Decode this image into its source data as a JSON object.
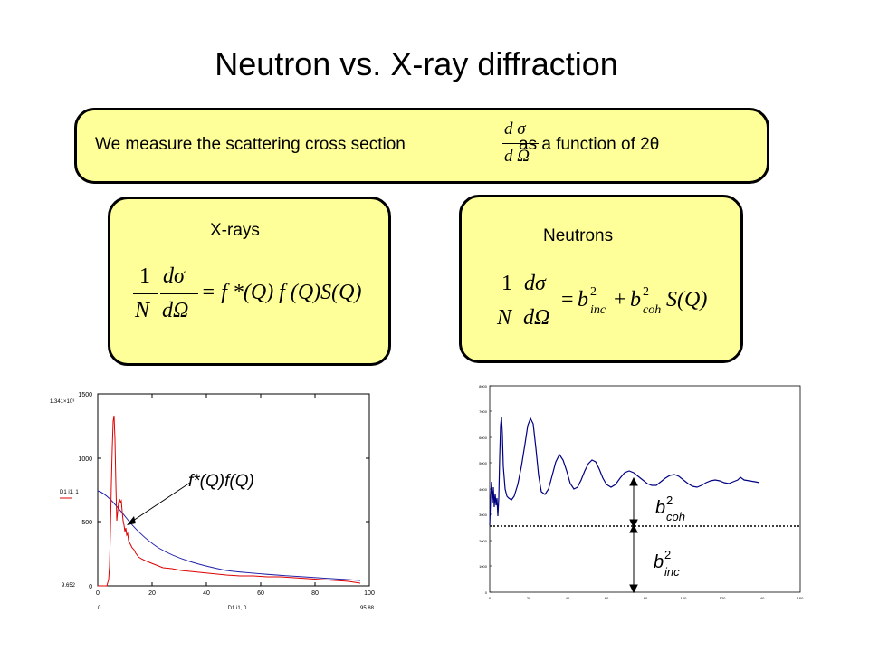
{
  "slide": {
    "title": "Neutron vs. X-ray diffraction",
    "top_box": {
      "text_before": "We measure the scattering cross section",
      "frac_num": "d σ",
      "frac_den": "d Ω",
      "text_after": "as a function of 2θ"
    },
    "xray_box": {
      "label": "X-rays",
      "eq_lhs1_num": "1",
      "eq_lhs1_den": "N",
      "eq_lhs2_num": "dσ",
      "eq_lhs2_den": "dΩ",
      "eq_rhs": "= f *(Q) f (Q)S(Q)"
    },
    "neutron_box": {
      "label": "Neutrons",
      "eq_lhs1_num": "1",
      "eq_lhs1_den": "N",
      "eq_lhs2_num": "dσ",
      "eq_lhs2_den": "dΩ",
      "eq_rhs_eq": "=",
      "b1": "b",
      "b1_sup": "2",
      "b1_sub": "inc",
      "plus": "+",
      "b2": "b",
      "b2_sup": "2",
      "b2_sub": "coh",
      "sq": "S(Q)"
    },
    "left_plot": {
      "annotation": "f*(Q)f(Q)",
      "legend_label": "D1 i1, 1",
      "xlabel": "D1 i1, 0",
      "yticks": [
        "0",
        "500",
        "1000",
        "1500"
      ],
      "xticks": [
        "0",
        "20",
        "40",
        "60",
        "80",
        "100"
      ],
      "ymax_label": "1.341×10³",
      "ymin_label": "9.652",
      "xmin_label": "0",
      "xmax_label": "95.88",
      "colors": {
        "series1": "#dd0000",
        "series2": "#2222aa"
      }
    },
    "right_plot": {
      "label_coh": "b",
      "label_coh_sup": "2",
      "label_coh_sub": "coh",
      "label_inc": "b",
      "label_inc_sup": "2",
      "label_inc_sub": "inc",
      "yticks": [
        "0",
        "1000",
        "2000",
        "3000",
        "4000",
        "5000",
        "6000",
        "7000",
        "8000"
      ],
      "xticks": [
        "0",
        "20",
        "40",
        "60",
        "80",
        "100",
        "120",
        "140",
        "160"
      ],
      "colors": {
        "series": "#000080"
      }
    }
  }
}
